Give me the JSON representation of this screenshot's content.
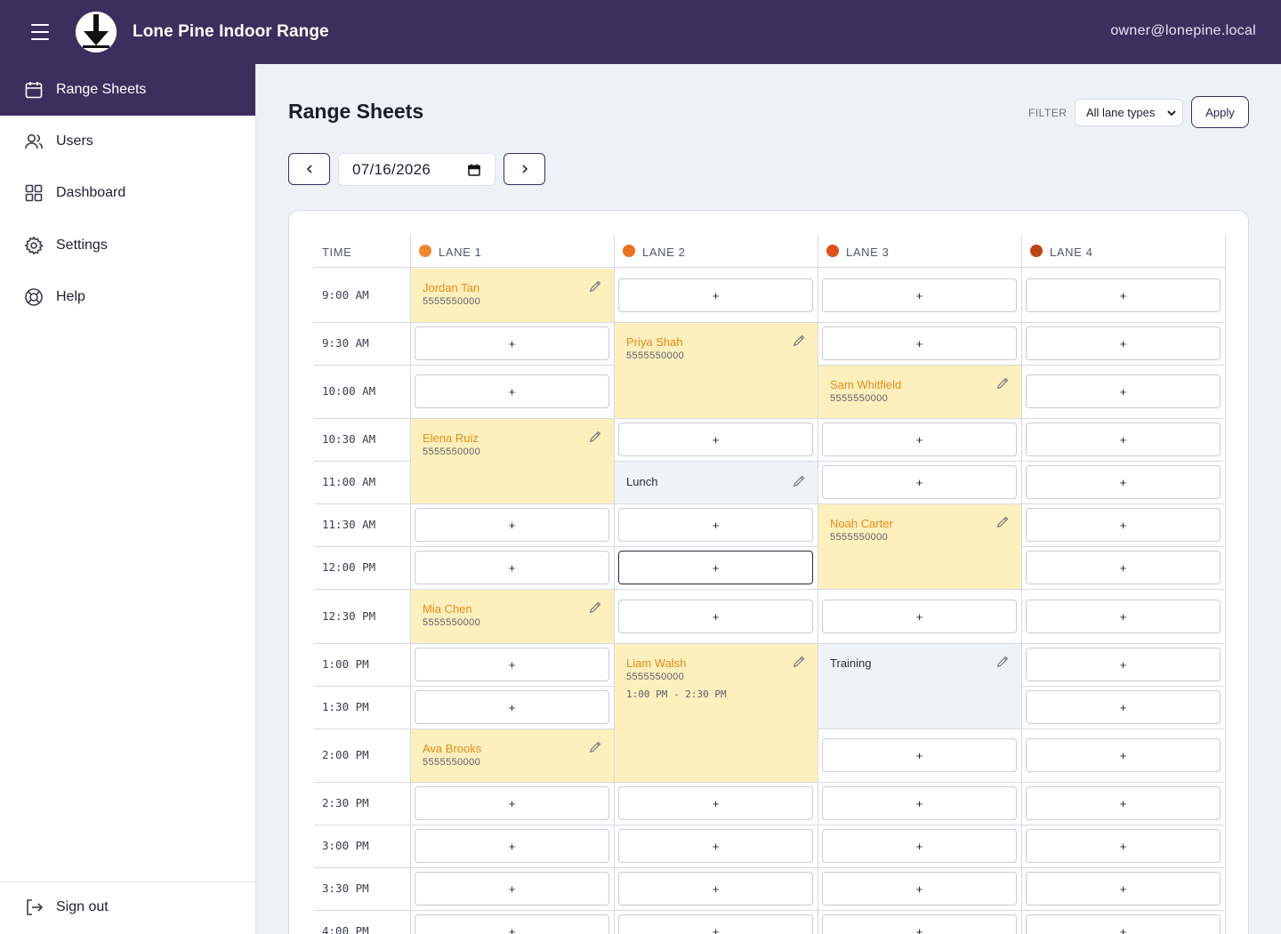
{
  "app": {
    "title": "Lone Pine Indoor Range",
    "user_email": "owner@lonepine.local"
  },
  "sidebar": {
    "items": [
      {
        "label": "Range Sheets",
        "icon": "calendar-icon",
        "active": true
      },
      {
        "label": "Users",
        "icon": "users-icon",
        "active": false
      },
      {
        "label": "Dashboard",
        "icon": "dashboard-grid-icon",
        "active": false
      },
      {
        "label": "Settings",
        "icon": "gear-icon",
        "active": false
      },
      {
        "label": "Help",
        "icon": "lifebuoy-icon",
        "active": false
      }
    ],
    "signout_label": "Sign out"
  },
  "page": {
    "title": "Range Sheets",
    "filter_label": "FILTER",
    "filter_value": "All lane types",
    "apply_label": "Apply",
    "date_value": "07/16/2026"
  },
  "sheet": {
    "time_header": "TIME",
    "add_label": "+",
    "lanes": [
      {
        "label": "LANE 1",
        "color": "#f0882c"
      },
      {
        "label": "LANE 2",
        "color": "#ee7020"
      },
      {
        "label": "LANE 3",
        "color": "#e0501a"
      },
      {
        "label": "LANE 4",
        "color": "#bf4414"
      }
    ],
    "times": [
      "9:00 AM",
      "9:30 AM",
      "10:00 AM",
      "10:30 AM",
      "11:00 AM",
      "11:30 AM",
      "12:00 PM",
      "12:30 PM",
      "1:00 PM",
      "1:30 PM",
      "2:00 PM",
      "2:30 PM",
      "3:00 PM",
      "3:30 PM",
      "4:00 PM"
    ],
    "bookings": [
      {
        "lane": 0,
        "start": 0,
        "span": 1,
        "name": "Jordan Tan",
        "phone": "5555550000"
      },
      {
        "lane": 1,
        "start": 1,
        "span": 2,
        "name": "Priya Shah",
        "phone": "5555550000"
      },
      {
        "lane": 2,
        "start": 2,
        "span": 1,
        "name": "Sam Whitfield",
        "phone": "5555550000"
      },
      {
        "lane": 0,
        "start": 3,
        "span": 2,
        "name": "Elena Ruiz",
        "phone": "5555550000"
      },
      {
        "lane": 2,
        "start": 5,
        "span": 2,
        "name": "Noah Carter",
        "phone": "5555550000"
      },
      {
        "lane": 0,
        "start": 7,
        "span": 1,
        "name": "Mia Chen",
        "phone": "5555550000"
      },
      {
        "lane": 1,
        "start": 8,
        "span": 3,
        "name": "Liam Walsh",
        "phone": "5555550000",
        "range": "1:00 PM - 2:30 PM"
      },
      {
        "lane": 0,
        "start": 10,
        "span": 1,
        "name": "Ava Brooks",
        "phone": "5555550000"
      }
    ],
    "blocks": [
      {
        "lane": 1,
        "start": 4,
        "span": 1,
        "name": "Lunch"
      },
      {
        "lane": 2,
        "start": 8,
        "span": 2,
        "name": "Training"
      }
    ],
    "focused_slot": {
      "lane": 1,
      "row": 6
    }
  }
}
